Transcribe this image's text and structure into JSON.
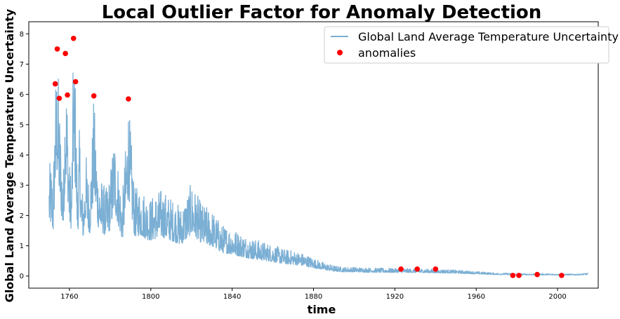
{
  "chart_data": {
    "type": "line",
    "title": "Local Outlier Factor for Anomaly Detection",
    "xlabel": "time",
    "ylabel": "Global Land Average Temperature Uncertainty",
    "xlim": [
      1740,
      2020
    ],
    "ylim": [
      -0.4,
      8.4
    ],
    "x_ticks": [
      1760,
      1800,
      1840,
      1880,
      1920,
      1960,
      2000
    ],
    "y_ticks": [
      0,
      1,
      2,
      3,
      4,
      5,
      6,
      7,
      8
    ],
    "legend_position": "top-right",
    "grid": false,
    "series": [
      {
        "name": "Global Land Average Temperature Uncertainty",
        "color": "#7bafd4",
        "x": [
          1750,
          1751,
          1752,
          1753,
          1754,
          1755,
          1756,
          1757,
          1758,
          1759,
          1760,
          1761,
          1762,
          1763,
          1764,
          1765,
          1766,
          1767,
          1768,
          1769,
          1770,
          1772,
          1774,
          1776,
          1778,
          1780,
          1782,
          1784,
          1786,
          1789,
          1792,
          1795,
          1798,
          1800,
          1805,
          1810,
          1815,
          1820,
          1825,
          1830,
          1835,
          1840,
          1845,
          1850,
          1855,
          1860,
          1865,
          1870,
          1875,
          1880,
          1885,
          1890,
          1895,
          1900,
          1905,
          1910,
          1915,
          1920,
          1925,
          1930,
          1935,
          1940,
          1945,
          1950,
          1955,
          1960,
          1965,
          1970,
          1975,
          1980,
          1985,
          1990,
          1995,
          2000,
          2005,
          2010,
          2015
        ],
        "y": [
          3.7,
          3.8,
          3.2,
          6.35,
          7.5,
          5.85,
          4.5,
          3.2,
          7.35,
          5.98,
          3.8,
          3.4,
          7.85,
          6.4,
          2.9,
          5.1,
          3.0,
          2.8,
          4.2,
          3.5,
          3.1,
          5.95,
          3.6,
          3.2,
          2.9,
          3.4,
          4.9,
          3.7,
          2.6,
          5.85,
          2.9,
          3.0,
          2.7,
          2.6,
          2.9,
          2.6,
          2.3,
          3.1,
          2.4,
          2.2,
          1.7,
          1.6,
          1.4,
          1.25,
          1.15,
          1.05,
          0.9,
          0.85,
          0.75,
          0.6,
          0.45,
          0.35,
          0.3,
          0.3,
          0.28,
          0.27,
          0.26,
          0.26,
          0.25,
          0.25,
          0.24,
          0.23,
          0.22,
          0.2,
          0.18,
          0.15,
          0.13,
          0.1,
          0.1,
          0.08,
          0.08,
          0.08,
          0.08,
          0.07,
          0.07,
          0.07,
          0.1
        ]
      },
      {
        "name": "anomalies",
        "color": "#ff0000",
        "x": [
          1753,
          1754,
          1755,
          1758,
          1759,
          1762,
          1763,
          1772,
          1789,
          1923,
          1931,
          1940,
          1978,
          1981,
          1990,
          2002
        ],
        "y": [
          6.35,
          7.5,
          5.87,
          7.35,
          5.98,
          7.85,
          6.42,
          5.95,
          5.85,
          0.23,
          0.23,
          0.23,
          0.02,
          0.02,
          0.05,
          0.02
        ]
      }
    ]
  }
}
